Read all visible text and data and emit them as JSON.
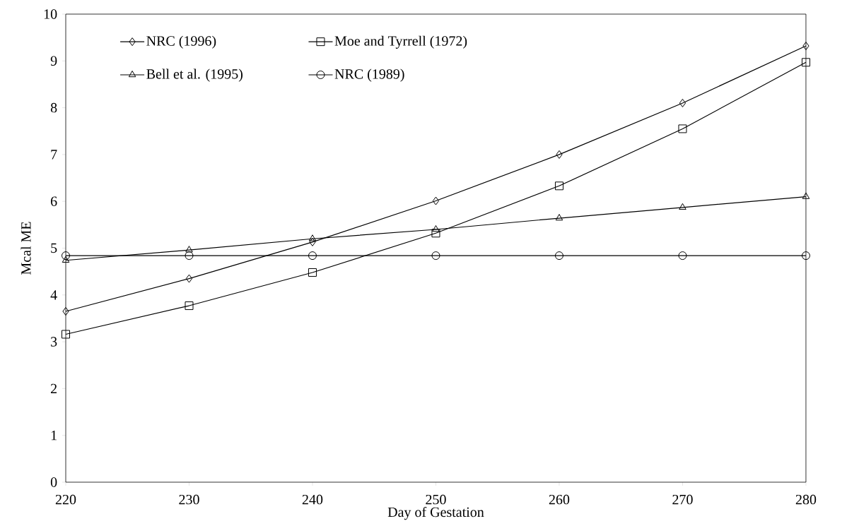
{
  "chart_data": {
    "type": "line",
    "xlabel": "Day of Gestation",
    "ylabel": "Mcal ME",
    "x": [
      220,
      230,
      240,
      250,
      260,
      270,
      280
    ],
    "series": [
      {
        "name": "NRC (1996)",
        "color": "#000000",
        "marker": "diamond",
        "values": [
          3.65,
          4.35,
          5.13,
          6.01,
          7.0,
          8.1,
          9.32
        ]
      },
      {
        "name": "Moe and Tyrrell (1972)",
        "color": "#000000",
        "marker": "square",
        "values": [
          3.16,
          3.77,
          4.48,
          5.32,
          6.33,
          7.55,
          8.97
        ]
      },
      {
        "name": "Bell et al. (1995)",
        "color": "#000000",
        "marker": "triangle",
        "values": [
          4.74,
          4.96,
          5.2,
          5.4,
          5.64,
          5.87,
          6.1
        ]
      },
      {
        "name": "NRC (1989)",
        "color": "#000000",
        "marker": "circle",
        "values": [
          4.84,
          4.84,
          4.84,
          4.84,
          4.84,
          4.84,
          4.84
        ]
      }
    ],
    "xlim": [
      220,
      280
    ],
    "xticks": [
      220,
      230,
      240,
      250,
      260,
      270,
      280
    ],
    "ylim": [
      0,
      10
    ],
    "yticks": [
      0,
      1,
      2,
      3,
      4,
      5,
      6,
      7,
      8,
      9,
      10
    ],
    "grid": false,
    "legend": "top",
    "line_style": "solid"
  }
}
